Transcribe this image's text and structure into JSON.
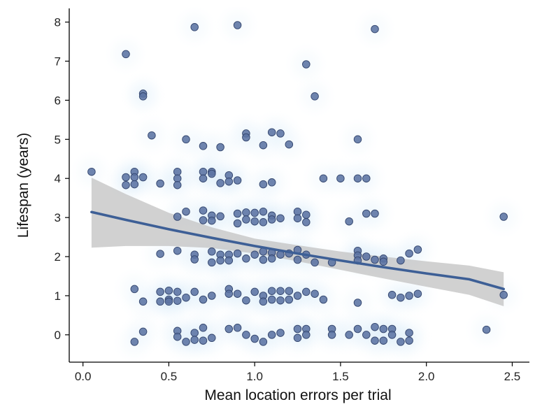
{
  "chart_data": {
    "type": "scatter",
    "title": "",
    "xlabel": "Mean location errors per trial",
    "ylabel": "Lifespan (years)",
    "xlim": [
      -0.08,
      2.6
    ],
    "ylim": [
      -0.7,
      8.35
    ],
    "x_ticks": [
      0.0,
      0.5,
      1.0,
      1.5,
      2.0,
      2.5
    ],
    "x_tick_labels": [
      "0.0",
      "0.5",
      "1.0",
      "1.5",
      "2.0",
      "2.5"
    ],
    "y_ticks": [
      0,
      1,
      2,
      3,
      4,
      5,
      6,
      7,
      8
    ],
    "y_tick_labels": [
      "0",
      "1",
      "2",
      "3",
      "4",
      "5",
      "6",
      "7",
      "8"
    ],
    "grid": false,
    "legend": "none",
    "colors": {
      "points": "#5b73a3",
      "point_edge": "#34466e",
      "fit_line": "#3d5f96",
      "confidence_band": "#c4c4c4",
      "density": "#a8d3f0"
    },
    "points": [
      [
        0.05,
        4.17
      ],
      [
        0.25,
        7.18
      ],
      [
        0.25,
        4.03
      ],
      [
        0.25,
        3.83
      ],
      [
        0.3,
        4.17
      ],
      [
        0.3,
        4.03
      ],
      [
        0.3,
        3.85
      ],
      [
        0.3,
        1.17
      ],
      [
        0.3,
        -0.18
      ],
      [
        0.35,
        6.17
      ],
      [
        0.35,
        6.1
      ],
      [
        0.35,
        4.03
      ],
      [
        0.35,
        0.85
      ],
      [
        0.35,
        0.08
      ],
      [
        0.4,
        5.1
      ],
      [
        0.45,
        3.87
      ],
      [
        0.45,
        2.07
      ],
      [
        0.45,
        1.1
      ],
      [
        0.45,
        0.85
      ],
      [
        0.5,
        1.13
      ],
      [
        0.5,
        0.9
      ],
      [
        0.5,
        0.85
      ],
      [
        0.55,
        4.17
      ],
      [
        0.55,
        4.0
      ],
      [
        0.55,
        3.83
      ],
      [
        0.55,
        3.02
      ],
      [
        0.55,
        2.15
      ],
      [
        0.55,
        1.1
      ],
      [
        0.55,
        0.87
      ],
      [
        0.55,
        0.1
      ],
      [
        0.55,
        -0.05
      ],
      [
        0.6,
        5.0
      ],
      [
        0.6,
        3.15
      ],
      [
        0.6,
        0.95
      ],
      [
        0.6,
        -0.18
      ],
      [
        0.65,
        7.87
      ],
      [
        0.65,
        2.05
      ],
      [
        0.65,
        1.93
      ],
      [
        0.65,
        1.1
      ],
      [
        0.65,
        0.05
      ],
      [
        0.65,
        -0.13
      ],
      [
        0.7,
        4.83
      ],
      [
        0.7,
        4.17
      ],
      [
        0.7,
        4.0
      ],
      [
        0.7,
        3.18
      ],
      [
        0.7,
        2.93
      ],
      [
        0.7,
        0.9
      ],
      [
        0.7,
        0.18
      ],
      [
        0.7,
        -0.15
      ],
      [
        0.75,
        4.17
      ],
      [
        0.75,
        4.12
      ],
      [
        0.75,
        3.05
      ],
      [
        0.75,
        2.92
      ],
      [
        0.75,
        2.13
      ],
      [
        0.75,
        1.85
      ],
      [
        0.75,
        1.0
      ],
      [
        0.75,
        -0.08
      ],
      [
        0.8,
        4.8
      ],
      [
        0.8,
        3.88
      ],
      [
        0.8,
        3.03
      ],
      [
        0.8,
        2.05
      ],
      [
        0.8,
        1.9
      ],
      [
        0.85,
        4.08
      ],
      [
        0.85,
        3.92
      ],
      [
        0.85,
        2.05
      ],
      [
        0.85,
        1.9
      ],
      [
        0.85,
        1.17
      ],
      [
        0.85,
        1.05
      ],
      [
        0.85,
        0.15
      ],
      [
        0.9,
        7.92
      ],
      [
        0.9,
        3.95
      ],
      [
        0.9,
        3.1
      ],
      [
        0.9,
        2.85
      ],
      [
        0.9,
        2.08
      ],
      [
        0.9,
        1.05
      ],
      [
        0.9,
        0.18
      ],
      [
        0.95,
        5.15
      ],
      [
        0.95,
        5.05
      ],
      [
        0.95,
        3.13
      ],
      [
        0.95,
        2.95
      ],
      [
        0.95,
        1.95
      ],
      [
        0.95,
        0.88
      ],
      [
        0.95,
        0.0
      ],
      [
        1.0,
        3.12
      ],
      [
        1.0,
        2.9
      ],
      [
        1.0,
        2.05
      ],
      [
        1.0,
        1.1
      ],
      [
        1.0,
        -0.1
      ],
      [
        1.05,
        4.85
      ],
      [
        1.05,
        3.85
      ],
      [
        1.05,
        3.15
      ],
      [
        1.05,
        2.88
      ],
      [
        1.05,
        2.13
      ],
      [
        1.05,
        1.92
      ],
      [
        1.05,
        1.0
      ],
      [
        1.05,
        0.85
      ],
      [
        1.05,
        -0.18
      ],
      [
        1.1,
        5.18
      ],
      [
        1.1,
        3.9
      ],
      [
        1.1,
        3.05
      ],
      [
        1.1,
        2.95
      ],
      [
        1.1,
        2.1
      ],
      [
        1.1,
        1.95
      ],
      [
        1.1,
        1.12
      ],
      [
        1.1,
        0.9
      ],
      [
        1.1,
        0.0
      ],
      [
        1.15,
        5.15
      ],
      [
        1.15,
        2.98
      ],
      [
        1.15,
        2.05
      ],
      [
        1.15,
        1.12
      ],
      [
        1.15,
        0.88
      ],
      [
        1.15,
        0.05
      ],
      [
        1.2,
        4.87
      ],
      [
        1.2,
        2.08
      ],
      [
        1.2,
        1.12
      ],
      [
        1.2,
        0.9
      ],
      [
        1.25,
        3.15
      ],
      [
        1.25,
        2.98
      ],
      [
        1.25,
        2.17
      ],
      [
        1.25,
        1.92
      ],
      [
        1.25,
        1.0
      ],
      [
        1.25,
        0.15
      ],
      [
        1.25,
        -0.08
      ],
      [
        1.3,
        6.92
      ],
      [
        1.3,
        3.07
      ],
      [
        1.3,
        2.88
      ],
      [
        1.3,
        2.05
      ],
      [
        1.3,
        1.1
      ],
      [
        1.3,
        0.15
      ],
      [
        1.3,
        0.0
      ],
      [
        1.35,
        6.1
      ],
      [
        1.35,
        1.85
      ],
      [
        1.35,
        1.05
      ],
      [
        1.4,
        4.0
      ],
      [
        1.4,
        0.9
      ],
      [
        1.45,
        1.85
      ],
      [
        1.45,
        0.15
      ],
      [
        1.45,
        0.0
      ],
      [
        1.5,
        4.0
      ],
      [
        1.55,
        2.9
      ],
      [
        1.55,
        0.0
      ],
      [
        1.6,
        5.0
      ],
      [
        1.6,
        4.0
      ],
      [
        1.6,
        2.15
      ],
      [
        1.6,
        2.03
      ],
      [
        1.6,
        1.9
      ],
      [
        1.6,
        0.82
      ],
      [
        1.6,
        0.15
      ],
      [
        1.65,
        4.0
      ],
      [
        1.65,
        3.1
      ],
      [
        1.65,
        2.0
      ],
      [
        1.65,
        0.0
      ],
      [
        1.7,
        7.82
      ],
      [
        1.7,
        3.1
      ],
      [
        1.7,
        1.92
      ],
      [
        1.7,
        0.2
      ],
      [
        1.7,
        -0.15
      ],
      [
        1.75,
        1.95
      ],
      [
        1.75,
        1.87
      ],
      [
        1.75,
        0.15
      ],
      [
        1.75,
        -0.15
      ],
      [
        1.8,
        1.02
      ],
      [
        1.8,
        0.15
      ],
      [
        1.8,
        0.0
      ],
      [
        1.85,
        1.9
      ],
      [
        1.85,
        0.95
      ],
      [
        1.85,
        -0.18
      ],
      [
        1.9,
        2.08
      ],
      [
        1.9,
        1.0
      ],
      [
        1.9,
        0.05
      ],
      [
        1.9,
        -0.15
      ],
      [
        1.95,
        2.18
      ],
      [
        1.95,
        1.05
      ],
      [
        2.35,
        0.13
      ],
      [
        2.45,
        3.02
      ],
      [
        2.45,
        1.02
      ]
    ],
    "fit_line": {
      "x": [
        0.05,
        0.25,
        0.5,
        0.75,
        1.0,
        1.25,
        1.5,
        1.75,
        2.0,
        2.25,
        2.45
      ],
      "y": [
        3.14,
        2.94,
        2.7,
        2.48,
        2.27,
        2.08,
        1.9,
        1.73,
        1.57,
        1.42,
        1.17
      ]
    },
    "confidence_band": {
      "x": [
        0.05,
        0.25,
        0.5,
        0.75,
        1.0,
        1.25,
        1.5,
        1.75,
        2.0,
        2.25,
        2.45
      ],
      "upper": [
        4.02,
        3.6,
        3.12,
        2.75,
        2.46,
        2.29,
        2.13,
        2.0,
        1.88,
        1.77,
        1.6
      ],
      "lower": [
        2.23,
        2.27,
        2.27,
        2.22,
        2.08,
        1.88,
        1.66,
        1.44,
        1.23,
        1.02,
        0.73
      ]
    }
  }
}
